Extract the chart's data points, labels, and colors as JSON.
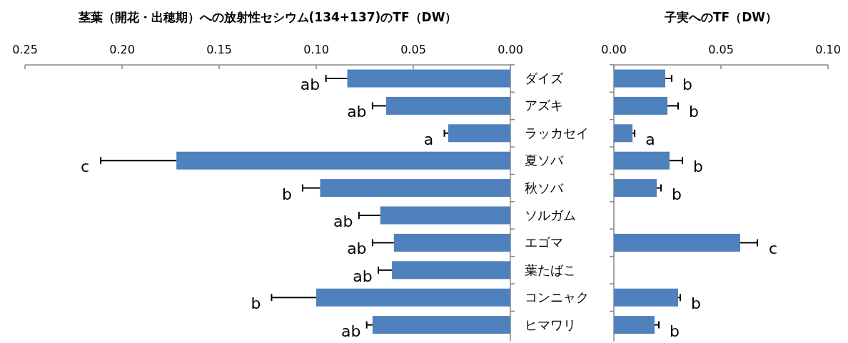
{
  "chart_data": [
    {
      "type": "bar",
      "orientation": "horizontal",
      "title": "茎葉（開花・出穂期）への放射性セシウム(134+137)のTF（DW）",
      "categories": [
        "ダイズ",
        "アズキ",
        "ラッカセイ",
        "夏ソバ",
        "秋ソバ",
        "ソルガム",
        "エゴマ",
        "葉たばこ",
        "コンニャク",
        "ヒマワリ"
      ],
      "xlim": [
        0.25,
        0
      ],
      "xticks": [
        {
          "value": 0.25,
          "label": "0.25"
        },
        {
          "value": 0.2,
          "label": "0.20"
        },
        {
          "value": 0.15,
          "label": "0.15"
        },
        {
          "value": 0.1,
          "label": "0.10"
        },
        {
          "value": 0.05,
          "label": "0.05"
        },
        {
          "value": 0,
          "label": "0.00"
        }
      ],
      "grid": false,
      "series": [
        {
          "color": "#4f81bd",
          "values": [
            0.084,
            0.064,
            0.032,
            0.172,
            0.098,
            0.067,
            0.06,
            0.061,
            0.1,
            0.071
          ],
          "errors": [
            [
              0.084,
              0.095
            ],
            [
              0.064,
              0.071
            ],
            [
              0.032,
              0.034
            ],
            [
              0.172,
              0.211
            ],
            [
              0.098,
              0.107
            ],
            [
              0.067,
              0.078
            ],
            [
              0.06,
              0.071
            ],
            [
              0.061,
              0.068
            ],
            [
              0.1,
              0.123
            ],
            [
              0.071,
              0.074
            ]
          ]
        }
      ],
      "annotations": [
        {
          "text": "ab",
          "x": 0.095,
          "y": "ダイズ"
        },
        {
          "text": "ab",
          "x": 0.071,
          "y": "アズキ"
        },
        {
          "text": "a",
          "x": 0.034,
          "y": "ラッカセイ"
        },
        {
          "text": "c",
          "x": 0.211,
          "y": "夏ソバ"
        },
        {
          "text": "b",
          "x": 0.107,
          "y": "秋ソバ"
        },
        {
          "text": "ab",
          "x": 0.078,
          "y": "ソルガム"
        },
        {
          "text": "ab",
          "x": 0.071,
          "y": "エゴマ"
        },
        {
          "text": "ab",
          "x": 0.068,
          "y": "葉たばこ"
        },
        {
          "text": "b",
          "x": 0.123,
          "y": "コンニャク"
        },
        {
          "text": "ab",
          "x": 0.074,
          "y": "ヒマワリ"
        }
      ]
    },
    {
      "type": "bar",
      "orientation": "horizontal",
      "title": "子実へのTF（DW）",
      "categories": [
        "ダイズ",
        "アズキ",
        "ラッカセイ",
        "夏ソバ",
        "秋ソバ",
        "ソルガム",
        "エゴマ",
        "葉たばこ",
        "コンニャク",
        "ヒマワリ"
      ],
      "xlim": [
        0,
        0.1
      ],
      "xticks": [
        {
          "value": 0,
          "label": "0.00"
        },
        {
          "value": 0.05,
          "label": "0.05"
        },
        {
          "value": 0.1,
          "label": "0.10"
        }
      ],
      "tick_labels": "x",
      "grid": false,
      "series": [
        {
          "color": "#4f81bd",
          "values": [
            0.024,
            0.025,
            0.0087,
            0.026,
            0.02,
            null,
            0.059,
            null,
            0.03,
            0.019
          ],
          "errors": [
            [
              0.024,
              0.027
            ],
            [
              0.025,
              0.03
            ],
            [
              0.0087,
              0.0097
            ],
            [
              0.026,
              0.032
            ],
            [
              0.02,
              0.022
            ],
            null,
            [
              0.059,
              0.067
            ],
            null,
            [
              0.03,
              0.031
            ],
            [
              0.019,
              0.021
            ]
          ]
        }
      ],
      "annotations": [
        {
          "text": "b",
          "x": 0.027,
          "y": "ダイズ"
        },
        {
          "text": "b",
          "x": 0.03,
          "y": "アズキ"
        },
        {
          "text": "a",
          "x": 0.0097,
          "y": "ラッカセイ"
        },
        {
          "text": "b",
          "x": 0.032,
          "y": "夏ソバ"
        },
        {
          "text": "b",
          "x": 0.022,
          "y": "秋ソバ"
        },
        {
          "text": "c",
          "x": 0.067,
          "y": "エゴマ"
        },
        {
          "text": "b",
          "x": 0.031,
          "y": "コンニャク"
        },
        {
          "text": "b",
          "x": 0.021,
          "y": "ヒマワリ"
        }
      ]
    }
  ]
}
